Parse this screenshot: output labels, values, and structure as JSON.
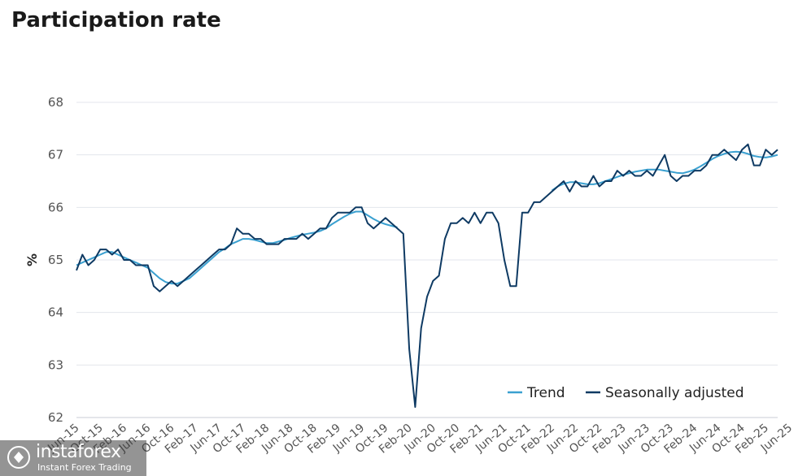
{
  "title": "Participation rate",
  "chart_data": {
    "type": "line",
    "title": "Participation rate",
    "xlabel": "",
    "ylabel": "%",
    "ylim": [
      62,
      68
    ],
    "yticks": [
      62,
      63,
      64,
      65,
      66,
      67,
      68
    ],
    "grid": true,
    "legend_position": "bottom-right",
    "x_tick_labels": [
      "Jun-15",
      "Oct-15",
      "Feb-16",
      "Jun-16",
      "Oct-16",
      "Feb-17",
      "Jun-17",
      "Oct-17",
      "Feb-18",
      "Jun-18",
      "Oct-18",
      "Feb-19",
      "Jun-19",
      "Oct-19",
      "Feb-20",
      "Jun-20",
      "Oct-20",
      "Feb-21",
      "Jun-21",
      "Oct-21",
      "Feb-22",
      "Jun-22",
      "Oct-22",
      "Feb-23",
      "Jun-23",
      "Oct-23",
      "Feb-24",
      "Jun-24",
      "Oct-24",
      "Feb-25",
      "Jun-25"
    ],
    "start_month": "Jun-15",
    "series": [
      {
        "name": "Seasonally adjusted",
        "color": "#0e3a63",
        "values": [
          64.8,
          65.1,
          64.9,
          65.0,
          65.2,
          65.2,
          65.1,
          65.2,
          65.0,
          65.0,
          64.9,
          64.9,
          64.9,
          64.5,
          64.4,
          64.5,
          64.6,
          64.5,
          64.6,
          64.7,
          64.8,
          64.9,
          65.0,
          65.1,
          65.2,
          65.2,
          65.3,
          65.6,
          65.5,
          65.5,
          65.4,
          65.4,
          65.3,
          65.3,
          65.3,
          65.4,
          65.4,
          65.4,
          65.5,
          65.4,
          65.5,
          65.6,
          65.6,
          65.8,
          65.9,
          65.9,
          65.9,
          66.0,
          66.0,
          65.7,
          65.6,
          65.7,
          65.8,
          65.7,
          65.6,
          65.5,
          63.3,
          62.2,
          63.7,
          64.3,
          64.6,
          64.7,
          65.4,
          65.7,
          65.7,
          65.8,
          65.7,
          65.9,
          65.7,
          65.9,
          65.9,
          65.7,
          65.0,
          64.5,
          64.5,
          65.9,
          65.9,
          66.1,
          66.1,
          66.2,
          66.3,
          66.4,
          66.5,
          66.3,
          66.5,
          66.4,
          66.4,
          66.6,
          66.4,
          66.5,
          66.5,
          66.7,
          66.6,
          66.7,
          66.6,
          66.6,
          66.7,
          66.6,
          66.8,
          67.0,
          66.6,
          66.5,
          66.6,
          66.6,
          66.7,
          66.7,
          66.8,
          67.0,
          67.0,
          67.1,
          67.0,
          66.9,
          67.1,
          67.2,
          66.8,
          66.8,
          67.1,
          67.0,
          67.1
        ]
      },
      {
        "name": "Trend",
        "color": "#3aa0d0",
        "segments": [
          {
            "start_index": 0,
            "values": [
              64.9,
              64.95,
              65.0,
              65.05,
              65.1,
              65.15,
              65.15,
              65.1,
              65.05,
              65.0,
              64.95,
              64.9,
              64.85,
              64.75,
              64.65,
              64.58,
              64.55,
              64.55,
              64.6,
              64.65,
              64.75,
              64.85,
              64.95,
              65.05,
              65.15,
              65.22,
              65.3,
              65.35,
              65.4,
              65.4,
              65.38,
              65.35,
              65.32,
              65.32,
              65.35,
              65.38,
              65.42,
              65.45,
              65.48,
              65.5,
              65.52,
              65.55,
              65.6,
              65.68,
              65.75,
              65.82,
              65.88,
              65.92,
              65.92,
              65.85,
              65.78,
              65.72,
              65.68,
              65.65,
              65.62
            ]
          },
          {
            "start_index": 80,
            "values": [
              66.32,
              66.4,
              66.45,
              66.48,
              66.48,
              66.46,
              66.44,
              66.44,
              66.46,
              66.5,
              66.54,
              66.58,
              66.62,
              66.65,
              66.68,
              66.7,
              66.72,
              66.72,
              66.72,
              66.7,
              66.68,
              66.66,
              66.65,
              66.68,
              66.72,
              66.78,
              66.85,
              66.92,
              66.98,
              67.02,
              67.05,
              67.06,
              67.05,
              67.02,
              66.98,
              66.96,
              66.95,
              66.97,
              67.0
            ]
          }
        ]
      }
    ]
  },
  "watermark": {
    "name": "instaforex",
    "tagline": "Instant Forex Trading"
  }
}
